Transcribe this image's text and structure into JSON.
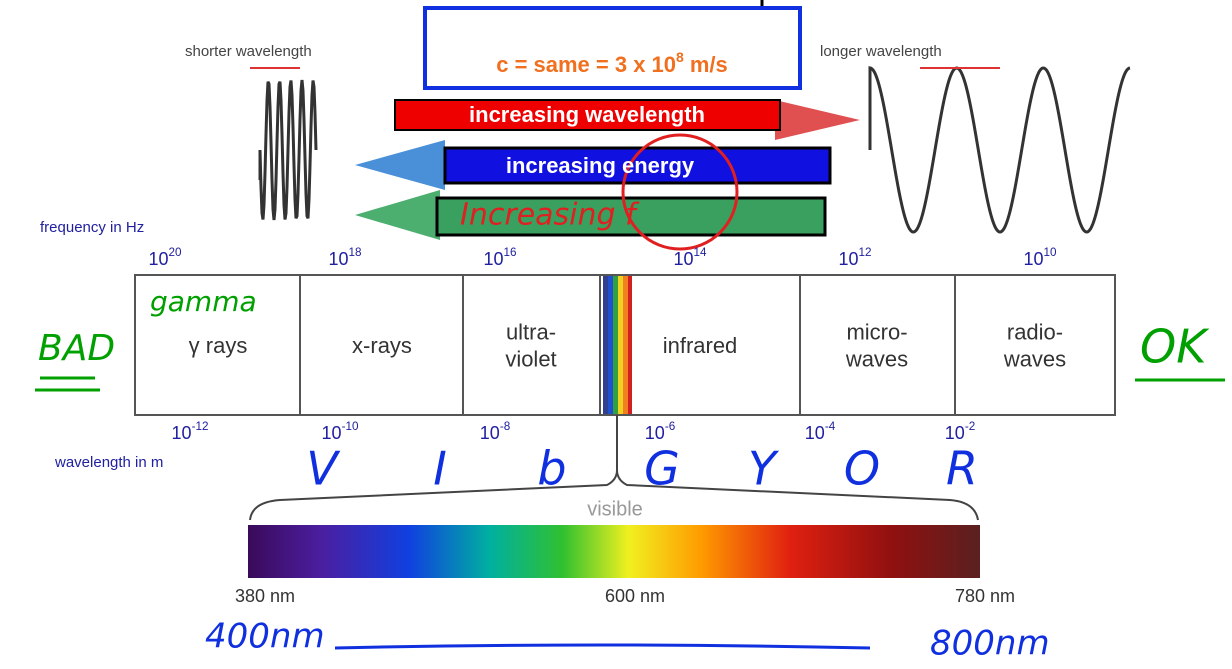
{
  "speed_box": {
    "text": "c = same = 3 x 10",
    "exponent": "8",
    "unit": "m/s"
  },
  "short_label": "shorter wavelength",
  "long_label": "longer wavelength",
  "arrows": {
    "wavelength": "increasing wavelength",
    "energy": "increasing energy",
    "frequency_note": "Increasing f"
  },
  "frequency_axis": {
    "title": "frequency in Hz",
    "ticks": [
      {
        "base": "10",
        "exponent": "20"
      },
      {
        "base": "10",
        "exponent": "18"
      },
      {
        "base": "10",
        "exponent": "16"
      },
      {
        "base": "10",
        "exponent": "14"
      },
      {
        "base": "10",
        "exponent": "12"
      },
      {
        "base": "10",
        "exponent": "10"
      }
    ]
  },
  "bands": [
    {
      "lines": [
        "γ rays"
      ]
    },
    {
      "lines": [
        "x-rays"
      ]
    },
    {
      "lines": [
        "ultra-",
        "violet"
      ]
    },
    {
      "lines": [
        "infrared"
      ]
    },
    {
      "lines": [
        "micro-",
        "waves"
      ]
    },
    {
      "lines": [
        "radio-",
        "waves"
      ]
    }
  ],
  "wavelength_axis": {
    "title": "wavelength in m",
    "ticks": [
      {
        "base": "10",
        "exponent": "-12"
      },
      {
        "base": "10",
        "exponent": "-10"
      },
      {
        "base": "10",
        "exponent": "-8"
      },
      {
        "base": "10",
        "exponent": "-6"
      },
      {
        "base": "10",
        "exponent": "-4"
      },
      {
        "base": "10",
        "exponent": "-2"
      }
    ]
  },
  "visible": {
    "label": "visible",
    "ticks": [
      "380 nm",
      "600 nm",
      "780 nm"
    ]
  },
  "annotations": {
    "bad": "BAD",
    "gamma": "gamma",
    "ok": "OK",
    "colors": [
      "V",
      "I",
      "b",
      "G",
      "Y",
      "O",
      "R"
    ],
    "start": "400nm",
    "end": "800nm"
  }
}
